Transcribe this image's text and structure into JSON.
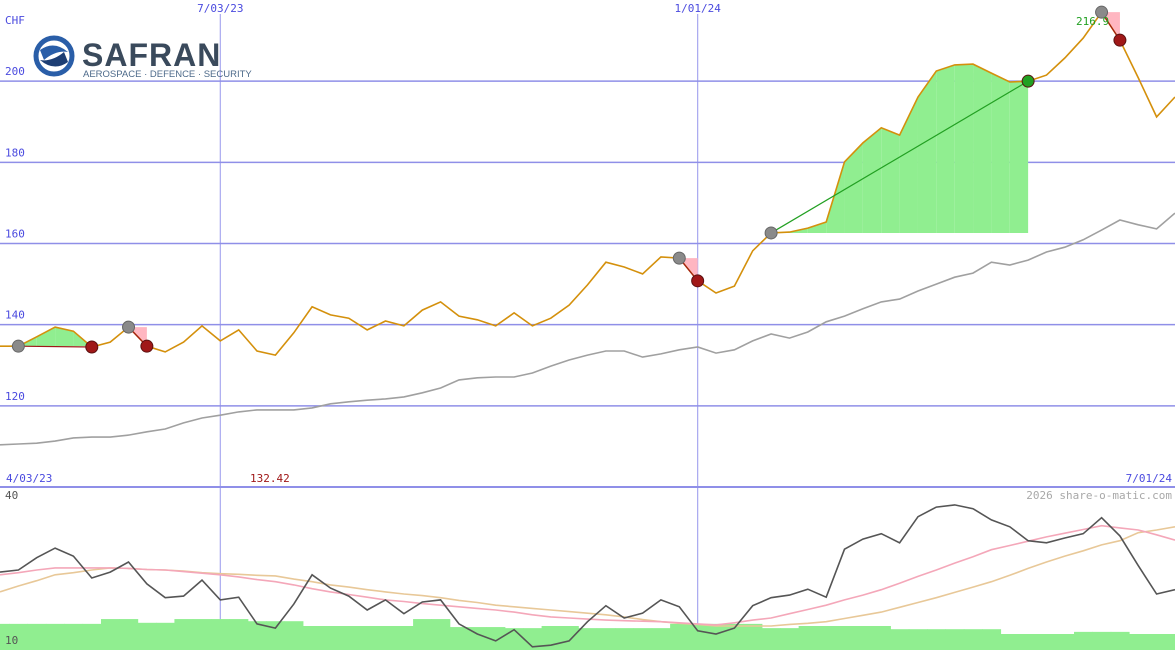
{
  "logo": {
    "name": "SAFRAN",
    "tagline": "AEROSPACE · DEFENCE · SECURITY"
  },
  "credit": "2026 share-o-matic.com",
  "chart_data": [
    {
      "type": "line",
      "ylabel": "CHF",
      "xlim": [
        0,
        64
      ],
      "xticks": [
        {
          "value": 0,
          "label": "4/03/23"
        },
        {
          "value": 12,
          "label": "7/03/23"
        },
        {
          "value": 38,
          "label": "1/01/24"
        },
        {
          "value": 64,
          "label": "7/01/24"
        }
      ],
      "ylim": [
        100,
        220
      ],
      "yticks": [
        120,
        140,
        160,
        180,
        200
      ],
      "grid": true,
      "low_label": "132.42",
      "high_label": "216.9",
      "series": [
        {
          "color": "#d4900c",
          "values": [
            134.7,
            134.7,
            137.0,
            139.4,
            138.4,
            134.5,
            135.7,
            139.4,
            134.7,
            133.3,
            135.7,
            139.7,
            136.0,
            138.7,
            133.5,
            132.5,
            138.0,
            144.4,
            142.4,
            141.6,
            138.7,
            140.9,
            139.7,
            143.6,
            145.6,
            142.1,
            141.2,
            139.7,
            142.9,
            139.7,
            141.6,
            144.8,
            149.8,
            155.4,
            154.2,
            152.5,
            156.7,
            156.4,
            150.8,
            147.8,
            149.5,
            158.2,
            162.6,
            162.8,
            163.8,
            165.3,
            180.1,
            184.8,
            188.5,
            186.7,
            196.1,
            202.5,
            204.0,
            204.2,
            202.0,
            199.8,
            200.0,
            201.5,
            205.7,
            210.6,
            217.0,
            210.1,
            200.8,
            191.2,
            196.1
          ]
        },
        {
          "color": "#a0a0a0",
          "values": [
            110.4,
            110.6,
            110.8,
            111.3,
            112.1,
            112.3,
            112.3,
            112.8,
            113.6,
            114.3,
            115.8,
            117.0,
            117.7,
            118.5,
            119.0,
            119.0,
            119.0,
            119.5,
            120.5,
            121.0,
            121.4,
            121.7,
            122.2,
            123.2,
            124.4,
            126.4,
            126.9,
            127.1,
            127.1,
            128.1,
            129.8,
            131.3,
            132.5,
            133.5,
            133.5,
            132.0,
            132.8,
            133.8,
            134.5,
            133.0,
            133.8,
            136.0,
            137.7,
            136.7,
            138.2,
            140.7,
            142.1,
            143.9,
            145.6,
            146.3,
            148.3,
            150.0,
            151.7,
            152.7,
            155.4,
            154.7,
            155.9,
            157.9,
            159.1,
            160.9,
            163.3,
            165.8,
            164.6,
            163.6,
            167.5
          ]
        }
      ],
      "gain_color": "#90ee90",
      "loss_color": "#ffb6c1",
      "entry_color": "#8a8a8a",
      "trades": [
        {
          "entry": 1,
          "exit": 5,
          "exit_color": "#a01818"
        },
        {
          "entry": 7,
          "exit": 8,
          "exit_color": "#a01818"
        },
        {
          "entry": 37,
          "exit": 38,
          "exit_color": "#a01818"
        },
        {
          "entry": 42,
          "exit": 56,
          "exit_color": "#22a022"
        },
        {
          "entry": 60,
          "exit": 61,
          "exit_color": "#a01818"
        }
      ]
    },
    {
      "type": "line",
      "ylim": [
        10,
        40
      ],
      "yticks": [
        40,
        10
      ],
      "volume": {
        "color": "#90ee90",
        "values": [
          14.9,
          14.9,
          14.9,
          14.9,
          14.9,
          14.9,
          15.8,
          15.8,
          15.1,
          15.1,
          15.8,
          15.8,
          15.8,
          15.8,
          15.4,
          15.4,
          15.4,
          14.5,
          14.5,
          14.5,
          14.5,
          14.5,
          14.5,
          15.8,
          15.8,
          14.3,
          14.3,
          14.3,
          14.1,
          14.1,
          14.5,
          14.5,
          14.1,
          14.1,
          14.1,
          14.1,
          14.1,
          14.9,
          14.9,
          14.9,
          14.9,
          14.9,
          14.1,
          14.1,
          14.5,
          14.5,
          14.5,
          14.5,
          14.5,
          13.9,
          13.9,
          13.9,
          13.9,
          13.9,
          13.9,
          13.0,
          13.0,
          13.0,
          13.0,
          13.4,
          13.4,
          13.4,
          13.0,
          13.0,
          13.0
        ]
      },
      "series": [
        {
          "color": "#e8c898",
          "values": [
            20.9,
            22.0,
            23.0,
            24.1,
            24.5,
            25.0,
            25.4,
            25.3,
            25.1,
            25.0,
            24.8,
            24.5,
            24.3,
            24.2,
            24.0,
            23.9,
            23.3,
            22.8,
            22.2,
            21.8,
            21.3,
            20.9,
            20.5,
            20.2,
            19.8,
            19.3,
            18.9,
            18.4,
            18.1,
            17.8,
            17.5,
            17.2,
            16.9,
            16.6,
            16.2,
            15.7,
            15.3,
            15.0,
            14.8,
            14.5,
            14.5,
            14.5,
            14.5,
            14.8,
            15.0,
            15.3,
            15.9,
            16.5,
            17.1,
            18.0,
            18.9,
            19.8,
            20.8,
            21.8,
            22.8,
            24.0,
            25.3,
            26.5,
            27.6,
            28.6,
            29.7,
            30.5,
            32.0,
            32.5,
            33.1
          ]
        },
        {
          "color": "#f4a7b9",
          "values": [
            24.1,
            24.5,
            25.0,
            25.4,
            25.4,
            25.4,
            25.4,
            25.3,
            25.1,
            25.0,
            24.7,
            24.4,
            24.1,
            23.7,
            23.2,
            22.8,
            22.2,
            21.5,
            20.9,
            20.4,
            19.9,
            19.4,
            19.1,
            18.7,
            18.4,
            18.1,
            17.8,
            17.5,
            17.1,
            16.6,
            16.2,
            16.0,
            15.8,
            15.6,
            15.5,
            15.4,
            15.3,
            15.1,
            14.9,
            14.7,
            15.1,
            15.6,
            16.0,
            16.8,
            17.6,
            18.4,
            19.4,
            20.3,
            21.3,
            22.5,
            23.8,
            25.0,
            26.3,
            27.5,
            28.8,
            29.6,
            30.4,
            31.2,
            31.9,
            32.6,
            33.3,
            32.9,
            32.5,
            31.6,
            30.6
          ]
        },
        {
          "color": "#555555",
          "values": [
            24.6,
            25.0,
            27.3,
            29.1,
            27.6,
            23.5,
            24.6,
            26.5,
            22.4,
            19.8,
            20.1,
            23.1,
            19.4,
            19.9,
            14.9,
            14.1,
            18.6,
            24.1,
            21.6,
            20.1,
            17.5,
            19.4,
            16.8,
            19.0,
            19.4,
            14.9,
            13.0,
            11.7,
            13.8,
            10.6,
            10.9,
            11.7,
            15.3,
            18.3,
            16.0,
            16.9,
            19.4,
            18.1,
            13.6,
            13.0,
            14.1,
            18.3,
            19.8,
            20.3,
            21.4,
            19.9,
            28.9,
            30.8,
            31.8,
            30.1,
            35.0,
            36.8,
            37.2,
            36.5,
            34.4,
            33.1,
            30.5,
            30.1,
            31.0,
            31.8,
            34.8,
            31.4,
            25.8,
            20.5,
            21.3
          ]
        }
      ]
    }
  ]
}
